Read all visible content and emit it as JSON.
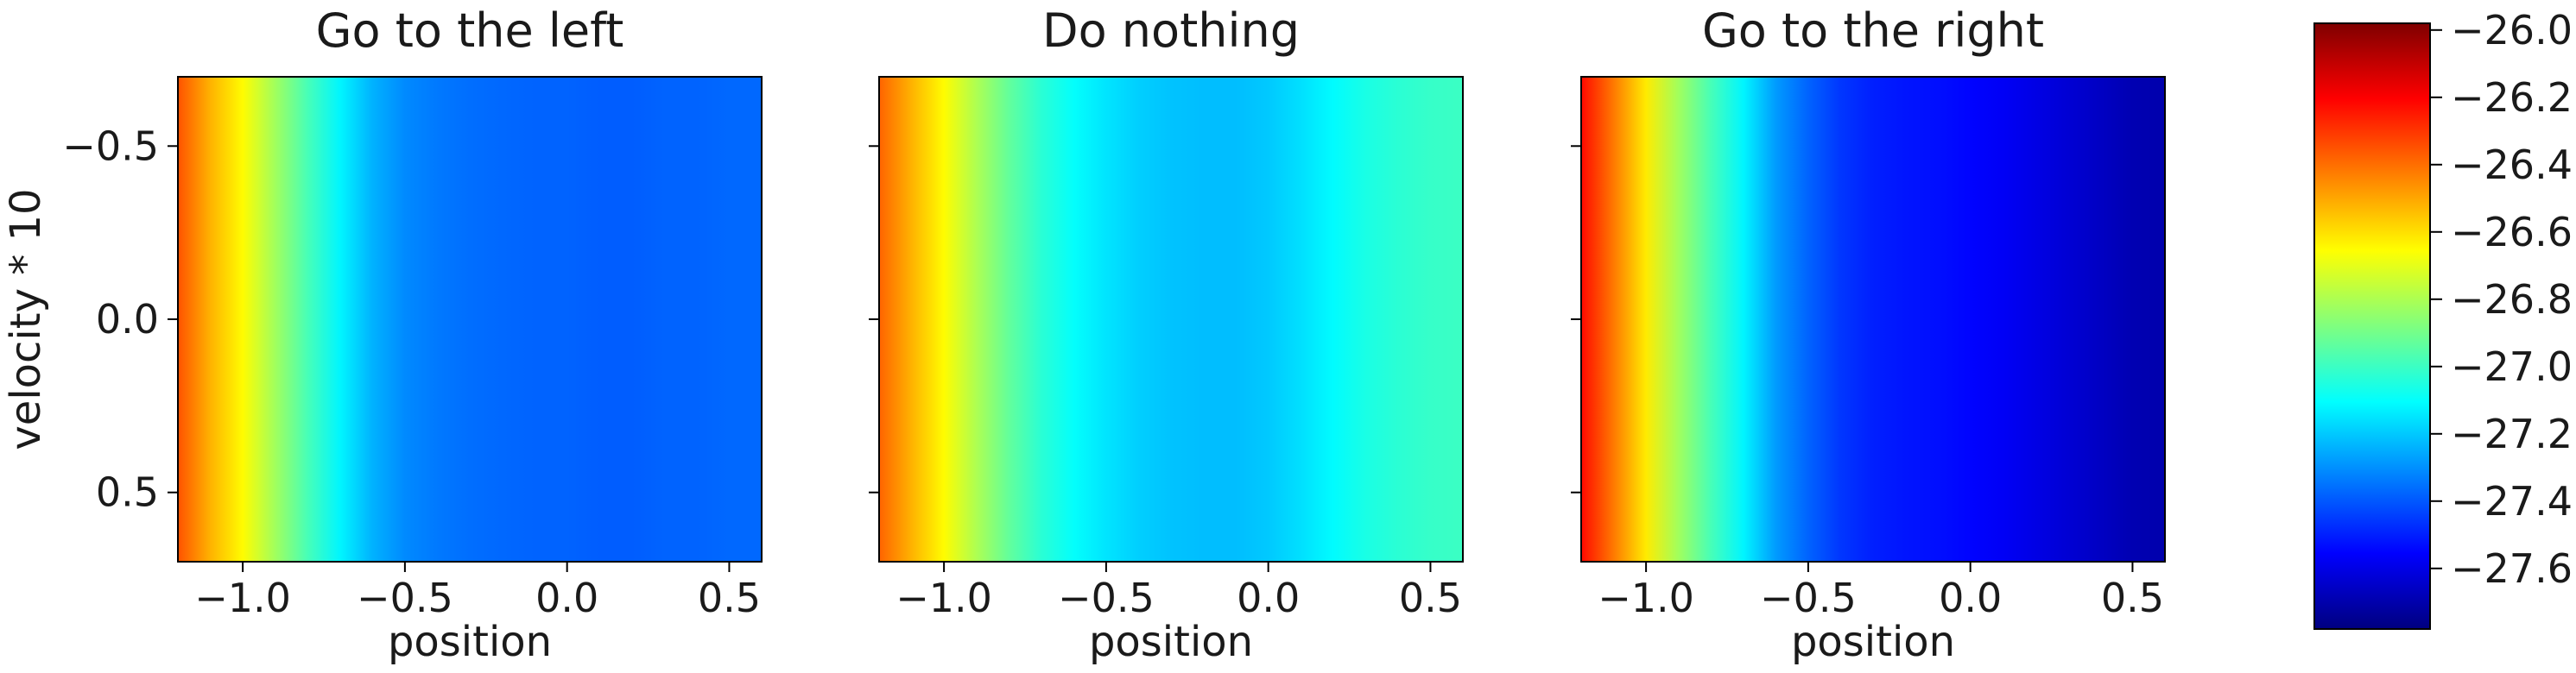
{
  "colors": {
    "jet_stops": [
      "#00007f",
      "#0000ff",
      "#007fff",
      "#00ffff",
      "#7fff7f",
      "#ffff00",
      "#ff7f00",
      "#ff0000",
      "#7f0000"
    ],
    "frame": "#000000",
    "text": "#1a1a1a"
  },
  "chart_data": [
    {
      "type": "heatmap",
      "title": "Go to the left",
      "xlabel": "position",
      "ylabel": "velocity * 10",
      "xlim": [
        -1.2,
        0.6
      ],
      "ylim": [
        0.7,
        -0.7
      ],
      "xticks": [
        -1.0,
        -0.5,
        0.0,
        0.5
      ],
      "xtick_labels": [
        "−1.0",
        "−0.5",
        "0.0",
        "0.5"
      ],
      "yticks": [
        -0.5,
        0.0,
        0.5
      ],
      "ytick_labels": [
        "−0.5",
        "0.0",
        "0.5"
      ],
      "profile_x": [
        -1.2,
        -1.1,
        -1.0,
        -0.9,
        -0.8,
        -0.7,
        -0.6,
        -0.5,
        -0.4,
        -0.3,
        -0.2,
        -0.1,
        0.0,
        0.1,
        0.2,
        0.3,
        0.4,
        0.5,
        0.6
      ],
      "profile_value": [
        -26.35,
        -26.52,
        -26.65,
        -26.82,
        -26.98,
        -27.12,
        -27.24,
        -27.31,
        -27.34,
        -27.36,
        -27.37,
        -27.38,
        -27.38,
        -27.39,
        -27.39,
        -27.38,
        -27.38,
        -27.37,
        -27.37
      ],
      "grid": false
    },
    {
      "type": "heatmap",
      "title": "Do nothing",
      "xlabel": "position",
      "ylabel": "",
      "xlim": [
        -1.2,
        0.6
      ],
      "ylim": [
        0.7,
        -0.7
      ],
      "xticks": [
        -1.0,
        -0.5,
        0.0,
        0.5
      ],
      "xtick_labels": [
        "−1.0",
        "−0.5",
        "0.0",
        "0.5"
      ],
      "yticks": [
        -0.5,
        0.0,
        0.5
      ],
      "ytick_labels": [],
      "profile_x": [
        -1.2,
        -1.1,
        -1.0,
        -0.9,
        -0.8,
        -0.7,
        -0.6,
        -0.5,
        -0.4,
        -0.3,
        -0.2,
        -0.1,
        0.0,
        0.1,
        0.2,
        0.3,
        0.4,
        0.5,
        0.6
      ],
      "profile_value": [
        -26.38,
        -26.52,
        -26.65,
        -26.8,
        -26.93,
        -27.03,
        -27.1,
        -27.15,
        -27.19,
        -27.21,
        -27.22,
        -27.22,
        -27.2,
        -27.16,
        -27.11,
        -27.06,
        -27.03,
        -27.01,
        -27.0
      ],
      "grid": false
    },
    {
      "type": "heatmap",
      "title": "Go to the right",
      "xlabel": "position",
      "ylabel": "",
      "xlim": [
        -1.2,
        0.6
      ],
      "ylim": [
        0.7,
        -0.7
      ],
      "xticks": [
        -1.0,
        -0.5,
        0.0,
        0.5
      ],
      "xtick_labels": [
        "−1.0",
        "−0.5",
        "0.0",
        "0.5"
      ],
      "yticks": [
        -0.5,
        0.0,
        0.5
      ],
      "ytick_labels": [],
      "profile_x": [
        -1.2,
        -1.1,
        -1.0,
        -0.9,
        -0.8,
        -0.7,
        -0.6,
        -0.5,
        -0.4,
        -0.3,
        -0.2,
        -0.1,
        0.0,
        0.1,
        0.2,
        0.3,
        0.4,
        0.5,
        0.6
      ],
      "profile_value": [
        -26.22,
        -26.42,
        -26.62,
        -26.82,
        -26.98,
        -27.12,
        -27.28,
        -27.38,
        -27.46,
        -27.5,
        -27.52,
        -27.53,
        -27.55,
        -27.57,
        -27.6,
        -27.63,
        -27.66,
        -27.69,
        -27.7
      ],
      "grid": false
    },
    {
      "type": "colorbar",
      "colormap": "jet",
      "range": [
        -27.78,
        -25.98
      ],
      "ticks": [
        -26.0,
        -26.2,
        -26.4,
        -26.6,
        -26.8,
        -27.0,
        -27.2,
        -27.4,
        -27.6
      ],
      "tick_labels": [
        "−26.0",
        "−26.2",
        "−26.4",
        "−26.6",
        "−26.8",
        "−27.0",
        "−27.2",
        "−27.4",
        "−27.6"
      ]
    }
  ]
}
